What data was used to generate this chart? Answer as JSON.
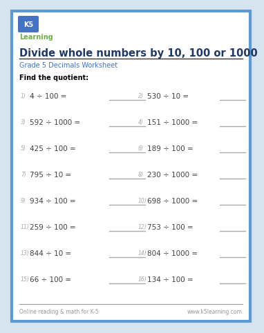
{
  "title": "Divide whole numbers by 10, 100 or 1000",
  "subtitle": "Grade 5 Decimals Worksheet",
  "instruction": "Find the quotient:",
  "border_color": "#5b9bd5",
  "title_color": "#1f3864",
  "subtitle_color": "#4472c4",
  "instruction_color": "#000000",
  "problem_color": "#404040",
  "number_color": "#aaaaaa",
  "line_color": "#aaaaaa",
  "footer_line_color": "#999999",
  "footer_text_color": "#999999",
  "footer_left": "Online reading & math for K-5",
  "footer_right": "www.k5learning.com",
  "problems": [
    {
      "num": "1)",
      "text": "4 ÷ 100 = "
    },
    {
      "num": "2)",
      "text": "530 ÷ 10 = "
    },
    {
      "num": "3)",
      "text": "592 ÷ 1000 = "
    },
    {
      "num": "4)",
      "text": "151 ÷ 1000 = "
    },
    {
      "num": "5)",
      "text": "425 ÷ 100 = "
    },
    {
      "num": "6)",
      "text": "189 ÷ 100 = "
    },
    {
      "num": "7)",
      "text": "795 ÷ 10 = "
    },
    {
      "num": "8)",
      "text": "230 ÷ 1000 = "
    },
    {
      "num": "9)",
      "text": "934 ÷ 100 = "
    },
    {
      "num": "10)",
      "text": "698 ÷ 1000 = "
    },
    {
      "num": "11)",
      "text": "259 ÷ 100 = "
    },
    {
      "num": "12)",
      "text": "753 ÷ 100 = "
    },
    {
      "num": "13)",
      "text": "844 ÷ 10 = "
    },
    {
      "num": "14)",
      "text": "804 ÷ 1000 = "
    },
    {
      "num": "15)",
      "text": "66 ÷ 100 = "
    },
    {
      "num": "16)",
      "text": "134 ÷ 100 = "
    }
  ],
  "background_color": "#ffffff",
  "outer_bg": "#d6e4f0",
  "logo_k5_bg": "#4472c4",
  "logo_k5_text": "K5",
  "logo_learning_color": "#70ad47",
  "logo_learning_text": "Learning"
}
